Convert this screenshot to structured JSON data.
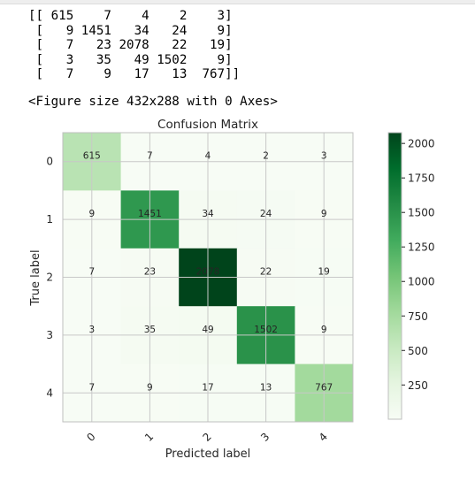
{
  "printed_output": {
    "matrix_lines": [
      "[[ 615    7    4    2    3]",
      " [   9 1451   34   24    9]",
      " [   7   23 2078   22   19]",
      " [   3   35   49 1502    9]",
      " [   7    9   17   13  767]]"
    ],
    "figure_repr": "<Figure size 432x288 with 0 Axes>"
  },
  "chart_data": {
    "type": "heatmap",
    "title": "Confusion Matrix",
    "xlabel": "Predicted label",
    "ylabel": "True label",
    "x_categories": [
      "0",
      "1",
      "2",
      "3",
      "4"
    ],
    "y_categories": [
      "0",
      "1",
      "2",
      "3",
      "4"
    ],
    "values": [
      [
        615,
        7,
        4,
        2,
        3
      ],
      [
        9,
        1451,
        34,
        24,
        9
      ],
      [
        7,
        23,
        2078,
        22,
        19
      ],
      [
        3,
        35,
        49,
        1502,
        9
      ],
      [
        7,
        9,
        17,
        13,
        767
      ]
    ],
    "colormap": "Greens",
    "colormap_colors": [
      "#f7fcf5",
      "#e5f5e0",
      "#c7e9c0",
      "#a1d99b",
      "#74c476",
      "#41ab5d",
      "#238b45",
      "#006d2c",
      "#00441b"
    ],
    "colorbar": {
      "range": [
        2,
        2078
      ],
      "ticks": [
        250,
        500,
        750,
        1000,
        1250,
        1500,
        1750,
        2000
      ],
      "placement": "right"
    },
    "x_tick_rotation_deg": 45,
    "grid": true
  }
}
